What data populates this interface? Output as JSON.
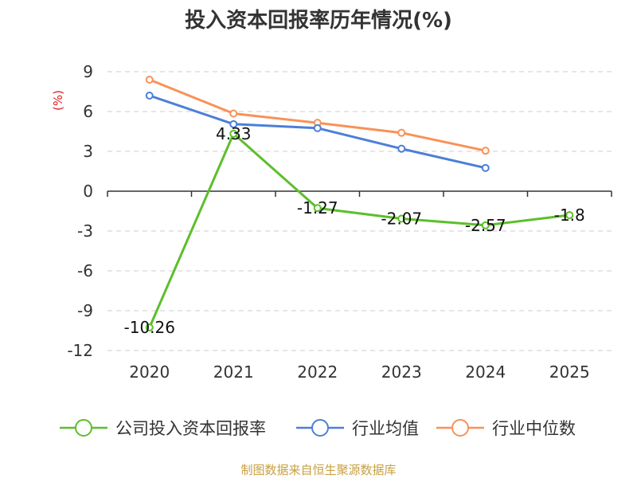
{
  "chart_data": {
    "type": "line",
    "title": "投入资本回报率历年情况(%)",
    "ylabel": "(%)",
    "categories": [
      "2020",
      "2021",
      "2022",
      "2023",
      "2024",
      "2025"
    ],
    "yticks": [
      "9",
      "6",
      "3",
      "0",
      "-3",
      "-6",
      "-9",
      "-12"
    ],
    "ylim": [
      -12,
      9
    ],
    "grid": true,
    "legend_position": "bottom",
    "series": [
      {
        "name": "公司投入资本回报率",
        "values": [
          -10.26,
          4.33,
          -1.27,
          -2.07,
          -2.57,
          -1.8
        ],
        "labels": [
          "-10.26",
          "4.33",
          "-1.27",
          "-2.07",
          "-2.57",
          "-1.8"
        ],
        "color": "#5cbf2a"
      },
      {
        "name": "行业均值",
        "values": [
          7.2,
          5.05,
          4.75,
          3.2,
          1.75,
          null
        ],
        "color": "#4c7fd8"
      },
      {
        "name": "行业中位数",
        "values": [
          8.4,
          5.85,
          5.15,
          4.4,
          3.05,
          null
        ],
        "color": "#f89258"
      }
    ]
  },
  "footer": "制图数据来自恒生聚源数据库"
}
